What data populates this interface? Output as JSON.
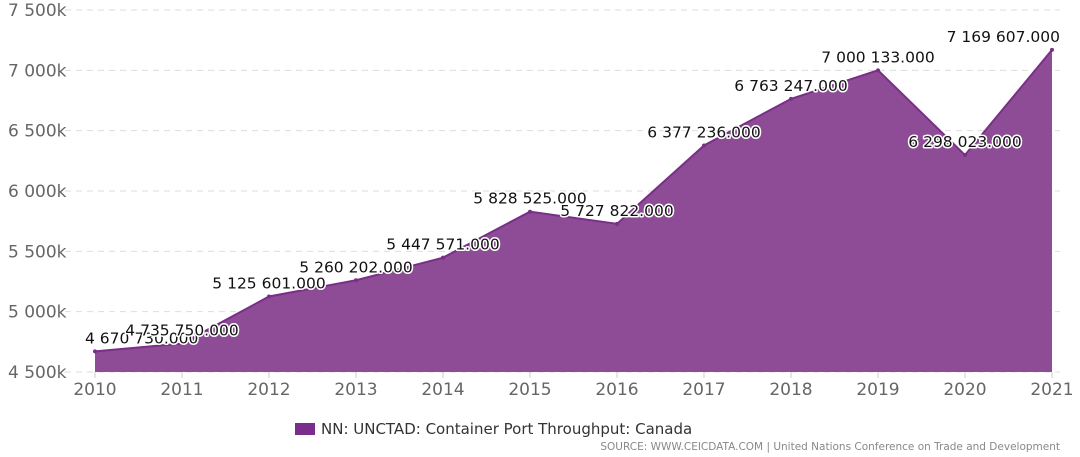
{
  "chart_data": {
    "type": "area",
    "x": [
      "2010",
      "2011",
      "2012",
      "2013",
      "2014",
      "2015",
      "2016",
      "2017",
      "2018",
      "2019",
      "2020",
      "2021"
    ],
    "series": [
      {
        "name": "NN: UNCTAD: Container Port Throughput: Canada",
        "values": [
          4670730,
          4735750,
          5125601,
          5260202,
          5447571,
          5828525,
          5727822,
          6377236,
          6763247,
          7000133,
          6298023,
          7169607
        ],
        "labels": [
          "4 670 730.000",
          "4 735 750.000",
          "5 125 601.000",
          "5 260 202.000",
          "5 447 571.000",
          "5 828 525.000",
          "5 727 822.000",
          "6 377 236.000",
          "6 763 247.000",
          "7 000 133.000",
          "6 298 023.000",
          "7 169 607.000"
        ]
      }
    ],
    "yticks": [
      4500000,
      5000000,
      5500000,
      6000000,
      6500000,
      7000000,
      7500000
    ],
    "ytick_labels": [
      "4 500k",
      "5 000k",
      "5 500k",
      "6 000k",
      "6 500k",
      "7 000k",
      "7 500k"
    ],
    "ylim": [
      4500000,
      7500000
    ],
    "grid": true,
    "legend_position": "bottom",
    "colors": {
      "area_fill": "#8e4c97",
      "area_line": "#7a2f87",
      "legend": "#7b2d8b",
      "grid": "#dddddd"
    }
  },
  "legend": {
    "label": "NN: UNCTAD: Container Port Throughput: Canada"
  },
  "source": "SOURCE: WWW.CEICDATA.COM | United Nations Conference on Trade and Development"
}
